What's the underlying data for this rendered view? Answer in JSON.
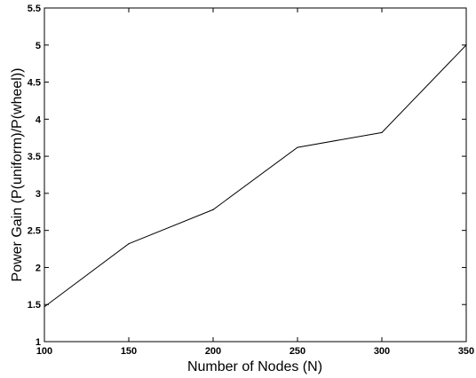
{
  "chart_data": {
    "type": "line",
    "title": "",
    "xlabel": "Number of Nodes (N)",
    "ylabel": "Power Gain (P(uniform)/P(wheel))",
    "xlim": [
      100,
      350
    ],
    "ylim": [
      1,
      5.5
    ],
    "xticks": [
      100,
      150,
      200,
      250,
      300,
      350
    ],
    "yticks": [
      1,
      1.5,
      2,
      2.5,
      3,
      3.5,
      4,
      4.5,
      5,
      5.5
    ],
    "xtick_labels": [
      "100",
      "150",
      "200",
      "250",
      "300",
      "350"
    ],
    "ytick_labels": [
      "1",
      "1.5",
      "2",
      "2.5",
      "3",
      "3.5",
      "4",
      "4.5",
      "5",
      "5.5"
    ],
    "grid": false,
    "series": [
      {
        "color": "#000000",
        "x": [
          100,
          150,
          200,
          250,
          300,
          350
        ],
        "y": [
          1.47,
          2.32,
          2.78,
          3.62,
          3.82,
          5.0
        ]
      }
    ]
  }
}
